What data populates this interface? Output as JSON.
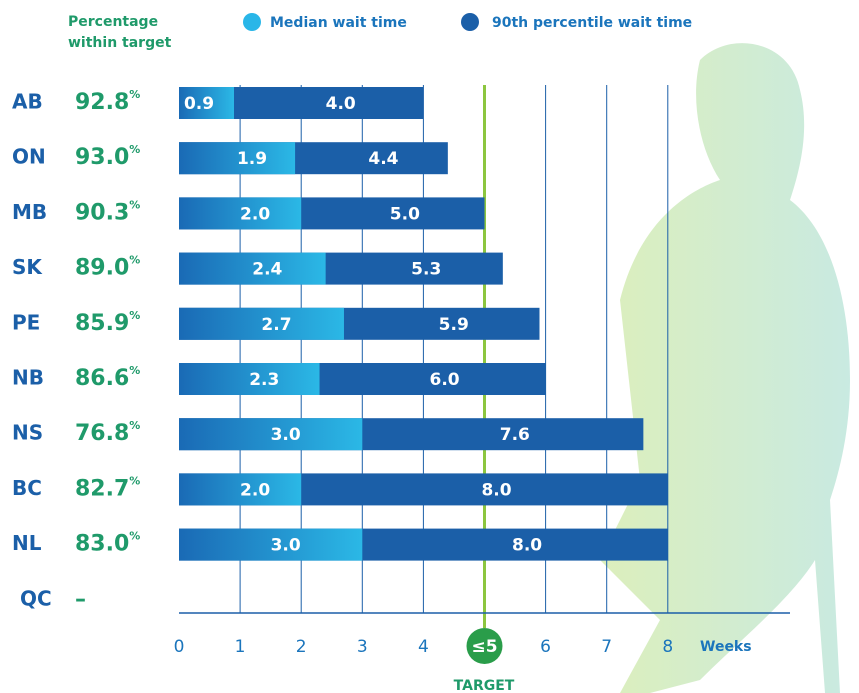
{
  "chart_data": {
    "type": "bar",
    "orientation": "horizontal",
    "categories": [
      "AB",
      "ON",
      "MB",
      "SK",
      "PE",
      "NB",
      "NS",
      "BC",
      "NL",
      "QC"
    ],
    "series": [
      {
        "name": "Median wait time",
        "color": "#29b6e8",
        "values": [
          0.9,
          1.9,
          2.0,
          2.4,
          2.7,
          2.3,
          3.0,
          2.0,
          3.0,
          null
        ],
        "value_labels": [
          "0.9",
          "1.9",
          "2.0",
          "2.4",
          "2.7",
          "2.3",
          "3.0",
          "2.0",
          "3.0",
          null
        ]
      },
      {
        "name": "90th percentile wait time",
        "color": "#1b5fa8",
        "values": [
          4.0,
          4.4,
          5.0,
          5.3,
          5.9,
          6.0,
          7.6,
          8.0,
          8.0,
          null
        ],
        "value_labels": [
          "4.0",
          "4.4",
          "5.0",
          "5.3",
          "5.9",
          "6.0",
          "7.6",
          "8.0",
          "8.0",
          null
        ]
      }
    ],
    "percentage_within_target": {
      "label": "Percentage within target",
      "unit": "%",
      "values": [
        92.8,
        93.0,
        90.3,
        89.0,
        85.9,
        86.6,
        76.8,
        82.7,
        83.0,
        null
      ],
      "value_labels": [
        "92.8",
        "93.0",
        "90.3",
        "89.0",
        "85.9",
        "86.6",
        "76.8",
        "82.7",
        "83.0",
        "–"
      ]
    },
    "xlabel": "Weeks",
    "target": {
      "value": 5,
      "label": "TARGET"
    },
    "xlim": [
      0,
      10
    ],
    "xticks": [
      0,
      1,
      2,
      3,
      4,
      {
        "value": 5,
        "label": "≤5"
      },
      6,
      7,
      8
    ],
    "grid": true
  }
}
